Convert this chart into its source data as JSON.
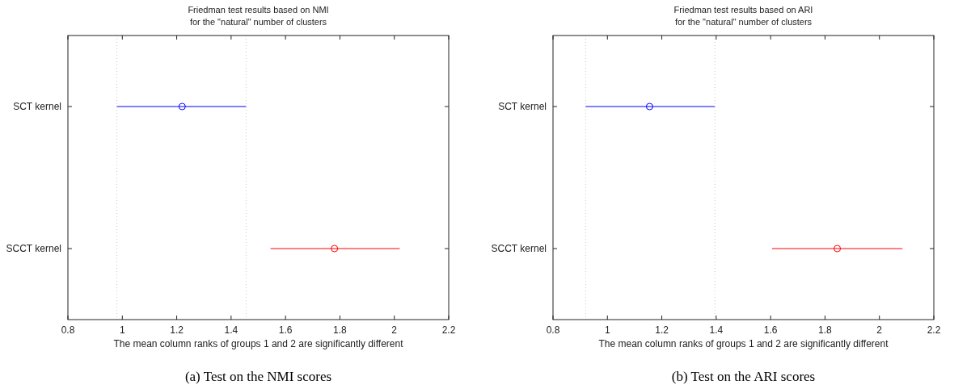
{
  "chart_data": [
    {
      "type": "scatter",
      "orientation": "horizontal",
      "title": "Friedman test results based on NMI\nfor the \"natural\" number of clusters",
      "xlabel": "The mean column ranks of groups 1 and 2 are significantly different",
      "categories": [
        "SCT kernel",
        "SCCT kernel"
      ],
      "values": [
        1.22,
        1.78
      ],
      "colors": [
        "#0000ff",
        "#ff0000"
      ],
      "errors": [
        [
          0.98,
          1.455
        ],
        [
          1.545,
          2.02
        ]
      ],
      "marker": "circle",
      "xlim": [
        0.8,
        2.2
      ],
      "xticks": [
        0.8,
        1,
        1.2,
        1.4,
        1.6,
        1.8,
        2,
        2.2
      ],
      "grid": false,
      "ref_lines": [
        {
          "axis": "x",
          "value": 0.98,
          "color": "#c8c8c8",
          "line_style": "dotted"
        },
        {
          "axis": "x",
          "value": 1.455,
          "color": "#c8c8c8",
          "line_style": "dotted"
        }
      ],
      "annotations": [
        "(a) Test on the NMI scores"
      ]
    },
    {
      "type": "scatter",
      "orientation": "horizontal",
      "title": "Friedman test results based on ARI\nfor the \"natural\" number of clusters",
      "xlabel": "The mean column ranks of groups 1 and 2 are significantly different",
      "categories": [
        "SCT kernel",
        "SCCT kernel"
      ],
      "values": [
        1.155,
        1.845
      ],
      "colors": [
        "#0000ff",
        "#ff0000"
      ],
      "errors": [
        [
          0.92,
          1.395
        ],
        [
          1.605,
          2.085
        ]
      ],
      "marker": "circle",
      "xlim": [
        0.8,
        2.2
      ],
      "xticks": [
        0.8,
        1,
        1.2,
        1.4,
        1.6,
        1.8,
        2,
        2.2
      ],
      "grid": false,
      "ref_lines": [
        {
          "axis": "x",
          "value": 0.92,
          "color": "#c8c8c8",
          "line_style": "dotted"
        },
        {
          "axis": "x",
          "value": 1.395,
          "color": "#c8c8c8",
          "line_style": "dotted"
        }
      ],
      "annotations": [
        "(b) Test on the ARI scores"
      ]
    }
  ]
}
